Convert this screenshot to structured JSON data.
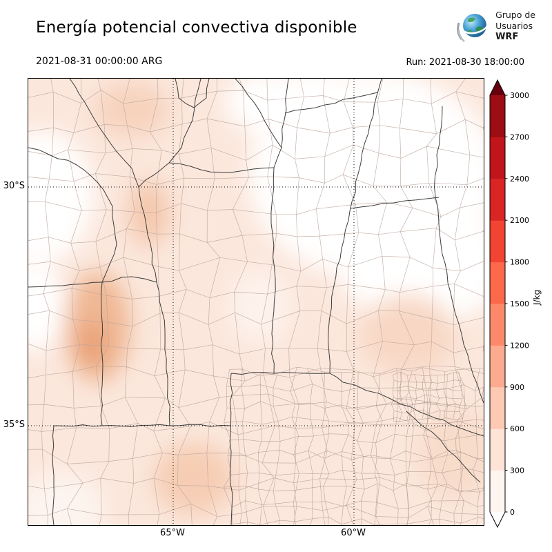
{
  "header": {
    "title": "Energía potencial convectiva disponible",
    "logo": {
      "line1": "Grupo de",
      "line2": "Usuarios",
      "line3": "WRF"
    },
    "valid_time": "2021-08-31 00:00:00 ARG",
    "run_label": "Run: 2021-08-30 18:00:00"
  },
  "map": {
    "lat_labels": [
      "30°S",
      "35°S"
    ],
    "lon_labels": [
      "65°W",
      "60°W"
    ]
  },
  "colorbar": {
    "unit": "J/kg",
    "tick_labels": [
      "0",
      "300",
      "600",
      "900",
      "1200",
      "1500",
      "1800",
      "2100",
      "2400",
      "2700",
      "3000"
    ],
    "segment_colors": [
      "#fff5f0",
      "#fee3d7",
      "#fdc9b3",
      "#fcab8f",
      "#fc8a6a",
      "#fb694a",
      "#f14432",
      "#d92523",
      "#c0161b",
      "#9c0d14"
    ],
    "over_color": "#67000d",
    "under_color": "#ffffff"
  },
  "chart_data": {
    "type": "heatmap",
    "title": "Energía potencial convectiva disponible",
    "variable_unit": "J/kg",
    "colorbar_levels": [
      0,
      300,
      600,
      900,
      1200,
      1500,
      1800,
      2100,
      2400,
      2700,
      3000
    ],
    "valid_time": "2021-08-31 00:00:00 ARG",
    "run_time": "Run: 2021-08-30 18:00:00",
    "lat_ticks": [
      "30°S",
      "35°S"
    ],
    "lon_ticks": [
      "65°W",
      "60°W"
    ],
    "value_summary": {
      "most_of_domain_jkg": "0-300",
      "local_maxima_west_cuyo_jkg": "600-900",
      "near_zero_regions": "northeast quadrant and western Andes edge"
    }
  }
}
